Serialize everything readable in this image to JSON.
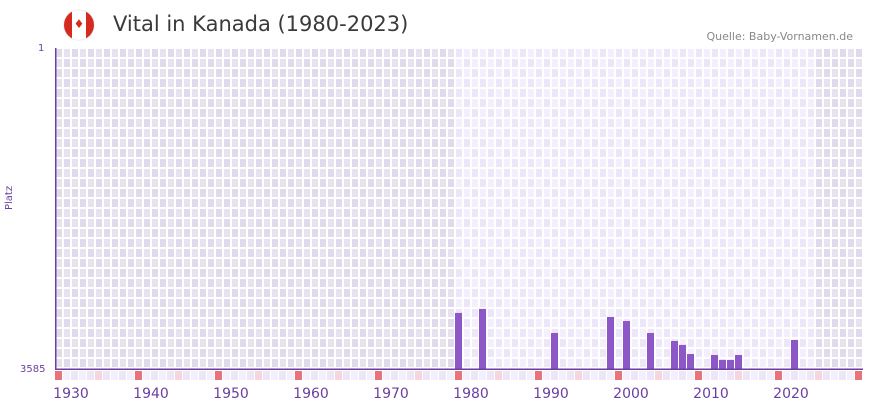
{
  "header": {
    "title": "Vital in Kanada (1980-2023)",
    "flag_icon": "canada-flag-icon",
    "source": "Quelle: Baby-Vornamen.de"
  },
  "colors": {
    "bar": "#8e57c8",
    "axis": "#6a3fa0",
    "decade_marker": "#e8737a",
    "mid_marker": "#f5d5de",
    "bg_out": "#e4e0ec",
    "bg_in": "#efeafa"
  },
  "chart_data": {
    "type": "bar",
    "title": "Vital in Kanada (1980-2023)",
    "xlabel": "",
    "ylabel": "Platz",
    "y_inverted": true,
    "ylim": [
      1,
      3585
    ],
    "xlim": [
      1928,
      2028
    ],
    "x_ticks": [
      1930,
      1940,
      1950,
      1960,
      1970,
      1980,
      1990,
      2000,
      2010,
      2020
    ],
    "y_ticks": [
      1,
      3585
    ],
    "highlight_range": [
      1978,
      2022
    ],
    "categories": [
      1978,
      1981,
      1990,
      1997,
      1999,
      2002,
      2005,
      2006,
      2007,
      2010,
      2011,
      2012,
      2013,
      2020
    ],
    "values": [
      2950,
      2905,
      3173,
      2995,
      3040,
      3173,
      3262,
      3306,
      3407,
      3418,
      3473,
      3473,
      3418,
      3251
    ],
    "grid": true,
    "legend": null
  },
  "axis": {
    "y_top": "1",
    "y_bottom": "3585",
    "y_name": "Platz"
  }
}
